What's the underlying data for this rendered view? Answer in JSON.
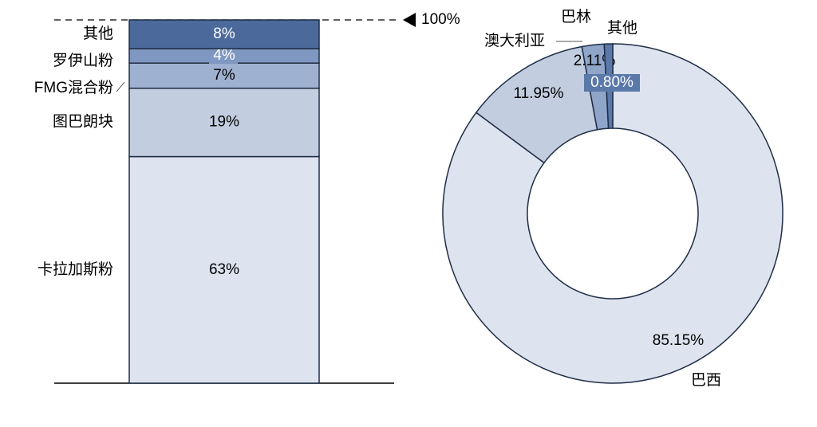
{
  "chart_data": [
    {
      "type": "stacked_bar",
      "total_label": "100%",
      "series": [
        {
          "name": "卡拉加斯粉",
          "color": "#dde3ef",
          "values": [
            63
          ],
          "value_labels": [
            "63%"
          ]
        },
        {
          "name": "图巴朗块",
          "color": "#c2cde0",
          "values": [
            19
          ],
          "value_labels": [
            "19%"
          ]
        },
        {
          "name": "FMG混合粉",
          "color": "#9fb1d1",
          "values": [
            7
          ],
          "value_labels": [
            "7%"
          ]
        },
        {
          "name": "罗伊山粉",
          "color": "#7f98c2",
          "values": [
            4
          ],
          "value_labels": [
            "4%"
          ]
        },
        {
          "name": "其他",
          "color": "#4b6a9b",
          "values": [
            8
          ],
          "value_labels": [
            "8%"
          ]
        }
      ]
    },
    {
      "type": "donut",
      "categories": [
        "巴西",
        "澳大利亚",
        "巴林",
        "其他"
      ],
      "values": [
        85.15,
        11.95,
        2.11,
        0.8
      ],
      "value_labels": [
        "85.15%",
        "11.95%",
        "2.11%",
        "0.80%"
      ],
      "colors": [
        "#dde3ef",
        "#c2cde0",
        "#8fa6c9",
        "#5a79a9"
      ]
    }
  ]
}
